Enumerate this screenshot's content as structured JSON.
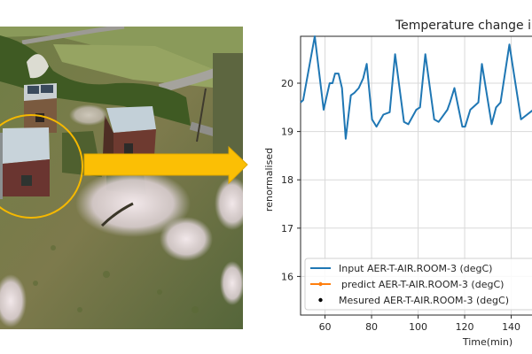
{
  "figure": {
    "arrow_color": "#fbbf05",
    "circle_color": "#f5b800",
    "photo_description": "Aerial view of small wooden test cabins on grass with flowering trees"
  },
  "chart_data": {
    "type": "line",
    "title": "Temperature change i",
    "xlabel": "Time(min)",
    "ylabel": "renormalised",
    "xlim": [
      49.5,
      150
    ],
    "ylim": [
      15.2,
      20.97
    ],
    "xticks": [
      60,
      80,
      100,
      120,
      140
    ],
    "yticks": [
      16,
      17,
      18,
      19,
      20
    ],
    "grid": true,
    "legend_position": "lower center",
    "series": [
      {
        "name": "Input AER-T-AIR.ROOM-3 (degC)",
        "color": "#1f77b4",
        "marker": "none",
        "x": [
          49.5,
          50.6,
          55.6,
          59.4,
          62.0,
          63.2,
          64.3,
          65.8,
          67.3,
          68.9,
          71.1,
          72.6,
          74.5,
          76.4,
          77.9,
          80.2,
          82.1,
          85.1,
          87.8,
          90.1,
          93.9,
          95.8,
          99.2,
          100.8,
          103.1,
          106.9,
          108.8,
          112.6,
          113.7,
          115.6,
          119.0,
          120.2,
          122.4,
          125.9,
          127.4,
          131.6,
          133.5,
          135.4,
          139.2,
          144.2,
          149.5
        ],
        "values": [
          19.6,
          19.65,
          21.0,
          19.45,
          20.0,
          20.0,
          20.2,
          20.2,
          19.9,
          18.85,
          19.75,
          19.8,
          19.9,
          20.1,
          20.4,
          19.25,
          19.1,
          19.35,
          19.4,
          20.6,
          19.2,
          19.15,
          19.45,
          19.5,
          20.6,
          19.25,
          19.2,
          19.45,
          19.6,
          19.9,
          19.1,
          19.1,
          19.45,
          19.6,
          20.4,
          19.15,
          19.5,
          19.6,
          20.8,
          19.25,
          19.45
        ]
      },
      {
        "name": "predict AER-T-AIR.ROOM-3 (degC)",
        "color": "#ff7f0e",
        "marker": "dot",
        "x": [],
        "values": []
      },
      {
        "name": "Mesured AER-T-AIR.ROOM-3 (degC)",
        "color": "#000000",
        "marker": "dot-only",
        "x": [],
        "values": []
      }
    ]
  }
}
